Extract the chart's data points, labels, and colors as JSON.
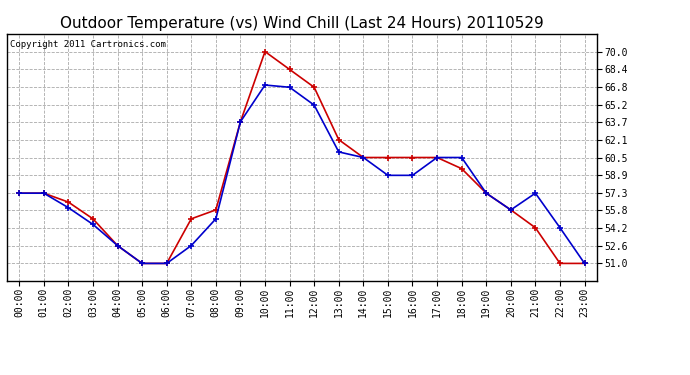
{
  "title": "Outdoor Temperature (vs) Wind Chill (Last 24 Hours) 20110529",
  "copyright_text": "Copyright 2011 Cartronics.com",
  "hours": [
    "00:00",
    "01:00",
    "02:00",
    "03:00",
    "04:00",
    "05:00",
    "06:00",
    "07:00",
    "08:00",
    "09:00",
    "10:00",
    "11:00",
    "12:00",
    "13:00",
    "14:00",
    "15:00",
    "16:00",
    "17:00",
    "18:00",
    "19:00",
    "20:00",
    "21:00",
    "22:00",
    "23:00"
  ],
  "temp": [
    57.3,
    57.3,
    56.5,
    55.0,
    52.6,
    51.0,
    51.0,
    55.0,
    55.8,
    63.7,
    70.0,
    68.4,
    66.8,
    62.1,
    60.5,
    60.5,
    60.5,
    60.5,
    59.5,
    57.3,
    55.8,
    54.2,
    51.0,
    51.0
  ],
  "windchill": [
    57.3,
    57.3,
    56.0,
    54.5,
    52.6,
    51.0,
    51.0,
    52.6,
    55.0,
    63.7,
    67.0,
    66.8,
    65.2,
    61.0,
    60.5,
    58.9,
    58.9,
    60.5,
    60.5,
    57.3,
    55.8,
    57.3,
    54.2,
    51.0
  ],
  "temp_color": "#cc0000",
  "windchill_color": "#0000cc",
  "marker": "+",
  "markersize": 5,
  "linewidth": 1.2,
  "markeredgewidth": 1.2,
  "ylim_min": 49.4,
  "ylim_max": 71.6,
  "yticks": [
    51.0,
    52.6,
    54.2,
    55.8,
    57.3,
    58.9,
    60.5,
    62.1,
    63.7,
    65.2,
    66.8,
    68.4,
    70.0
  ],
  "bg_color": "#ffffff",
  "grid_color": "#aaaaaa",
  "grid_style": "--",
  "title_fontsize": 11,
  "copyright_fontsize": 6.5,
  "tick_fontsize": 7
}
